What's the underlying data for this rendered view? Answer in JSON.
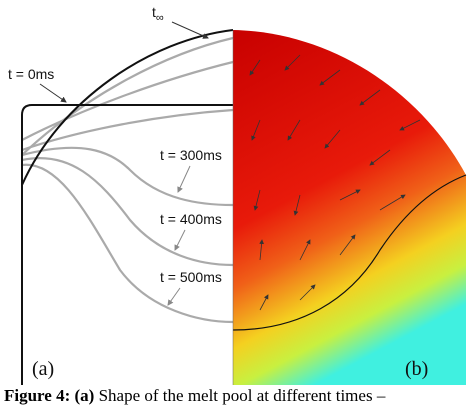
{
  "figure": {
    "labels": {
      "t_inf_main": "t",
      "t_inf_sub": "∞",
      "t0": "t = 0ms",
      "t300": "t = 300ms",
      "t400": "t = 400ms",
      "t500": "t = 500ms"
    },
    "panels": [
      "(a)",
      "(b)"
    ],
    "caption": {
      "label": "Figure 4:",
      "part": "(a)",
      "text": "Shape of the melt pool at different times –"
    }
  }
}
